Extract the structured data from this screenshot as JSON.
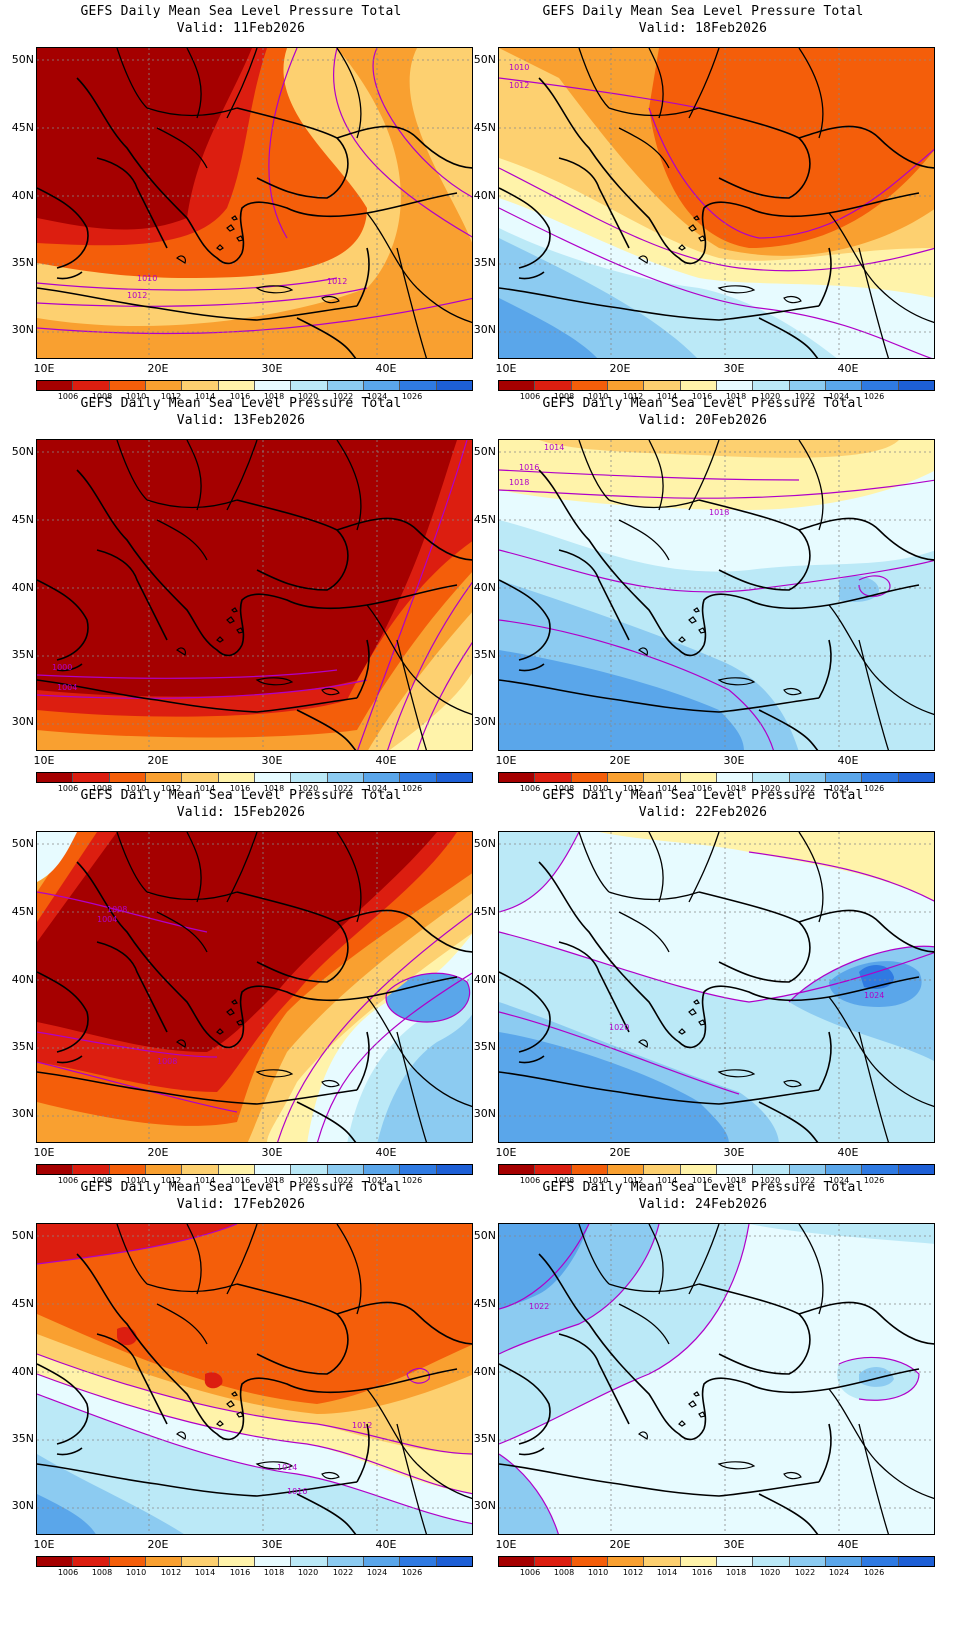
{
  "legend": {
    "labels": [
      "1006",
      "1008",
      "1010",
      "1012",
      "1014",
      "1016",
      "1018",
      "1020",
      "1022",
      "1024",
      "1026"
    ],
    "colors": [
      "#a50000",
      "#dc1e10",
      "#f45e0a",
      "#f9a030",
      "#fdd070",
      "#fff3aa",
      "#e7fbff",
      "#bbe9f7",
      "#8ccbf1",
      "#5aa6ea",
      "#2f7ae2",
      "#1d5fd6"
    ]
  },
  "latitude_labels": [
    "50N",
    "45N",
    "40N",
    "35N",
    "30N"
  ],
  "longitude_labels": [
    "10E",
    "20E",
    "30E",
    "40E"
  ],
  "panels": [
    {
      "title": "GEFS Daily Mean Sea Level Pressure Total",
      "valid": "Valid: 11Feb2026",
      "contour_labels": [
        "1010",
        "1012",
        "1012"
      ],
      "scheme": "deep-low"
    },
    {
      "title": "GEFS Daily Mean Sea Level Pressure Total",
      "valid": "Valid: 18Feb2026",
      "contour_labels": [
        "1010",
        "1012"
      ],
      "scheme": "moderate-low"
    },
    {
      "title": "GEFS Daily Mean Sea Level Pressure Total",
      "valid": "Valid: 13Feb2026",
      "contour_labels": [
        "1000",
        "1004"
      ],
      "scheme": "very-deep-low"
    },
    {
      "title": "GEFS Daily Mean Sea Level Pressure Total",
      "valid": "Valid: 20Feb2026",
      "contour_labels": [
        "1014",
        "1016",
        "1018",
        "1018"
      ],
      "scheme": "high-south"
    },
    {
      "title": "GEFS Daily Mean Sea Level Pressure Total",
      "valid": "Valid: 15Feb2026",
      "contour_labels": [
        "1008",
        "1004",
        "1008"
      ],
      "scheme": "low-west-high-east"
    },
    {
      "title": "GEFS Daily Mean Sea Level Pressure Total",
      "valid": "Valid: 22Feb2026",
      "contour_labels": [
        "1020",
        "1024"
      ],
      "scheme": "high"
    },
    {
      "title": "GEFS Daily Mean Sea Level Pressure Total",
      "valid": "Valid: 17Feb2026",
      "contour_labels": [
        "1012",
        "1014",
        "1016"
      ],
      "scheme": "low-north"
    },
    {
      "title": "GEFS Daily Mean Sea Level Pressure Total",
      "valid": "Valid: 24Feb2026",
      "contour_labels": [
        "1022"
      ],
      "scheme": "high-west"
    }
  ]
}
